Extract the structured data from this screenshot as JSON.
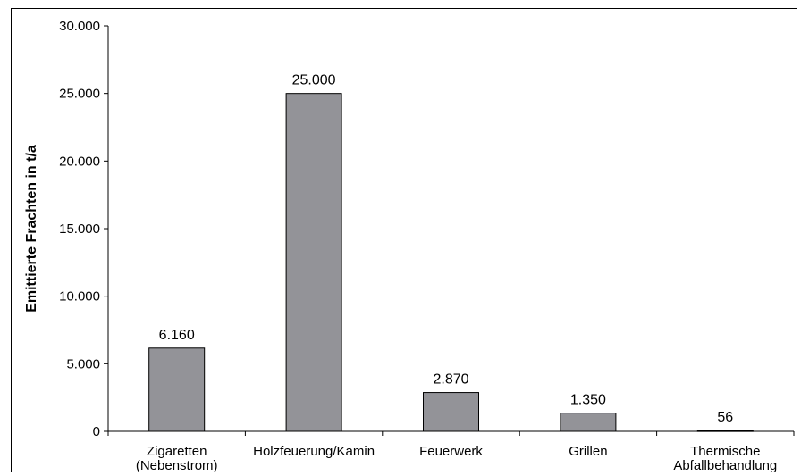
{
  "chart_data": {
    "type": "bar",
    "title": "",
    "xlabel": "",
    "ylabel": "Emittierte Frachten in t/a",
    "ylim": [
      0,
      30000
    ],
    "yticks": [
      0,
      5000,
      10000,
      15000,
      20000,
      25000,
      30000
    ],
    "ytick_labels": [
      "0",
      "5.000",
      "10.000",
      "15.000",
      "20.000",
      "25.000",
      "30.000"
    ],
    "categories": [
      [
        "Zigaretten",
        "(Nebenstrom)"
      ],
      [
        "Holzfeuerung/Kamin"
      ],
      [
        "Feuerwerk"
      ],
      [
        "Grillen"
      ],
      [
        "Thermische",
        "Abfallbehandlung"
      ]
    ],
    "values": [
      6160,
      25000,
      2870,
      1350,
      56
    ],
    "value_labels": [
      "6.160",
      "25.000",
      "2.870",
      "1.350",
      "56"
    ],
    "grid": false,
    "legend": "none",
    "colors": {
      "bar_fill": "#939398",
      "bar_stroke": "#000000",
      "axis": "#000000"
    }
  }
}
